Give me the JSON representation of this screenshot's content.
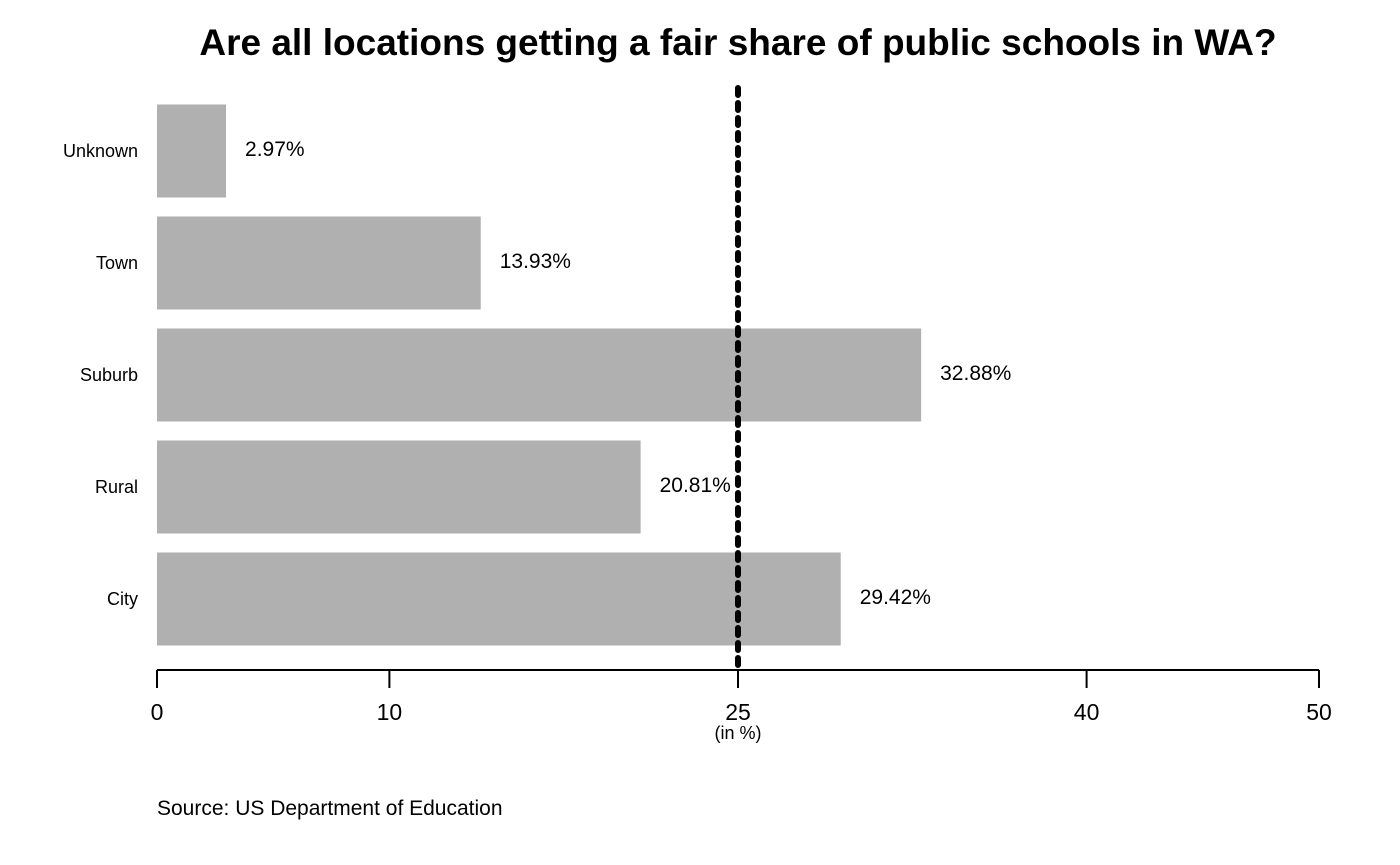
{
  "chart_data": {
    "type": "bar",
    "orientation": "horizontal",
    "title": "Are all locations getting a fair share of public schools in WA?",
    "categories": [
      "City",
      "Rural",
      "Suburb",
      "Town",
      "Unknown"
    ],
    "values": [
      29.42,
      20.81,
      32.88,
      13.93,
      2.97
    ],
    "value_labels": [
      "29.42%",
      "20.81%",
      "32.88%",
      "13.93%",
      "2.97%"
    ],
    "bar_color": "#b0b0b0",
    "xlim": [
      0,
      50
    ],
    "xticks": [
      0,
      10,
      25,
      40,
      50
    ],
    "xtick_labels": [
      "0",
      "10",
      "25",
      "40",
      "50"
    ],
    "xlabel": "(in %)",
    "reference_line": {
      "x": 25,
      "style": "dotted",
      "color": "#000000"
    },
    "grid": false,
    "legend": "none",
    "source": "Source: US Department of Education"
  }
}
